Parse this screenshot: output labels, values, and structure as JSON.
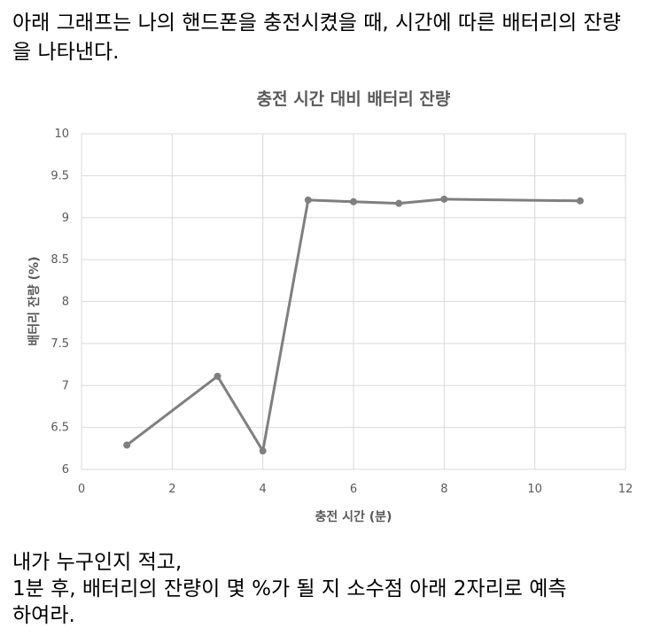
{
  "question": {
    "intro": "아래 그래프는 나의 핸드폰을 충전시켰을 때, 시간에 따른 배터리의 잔량을 나타낸다.",
    "lines": [
      "내가 누구인지 적고,",
      "1분 후, 배터리의 잔량이 몇 %가 될 지 소수점 아래 2자리로 예측",
      "하여라."
    ]
  },
  "colors": {
    "line": "#7f7f7f",
    "grid": "#d9d9d9",
    "text": "#595959"
  },
  "chart_data": {
    "type": "scatter",
    "title": "충전 시간 대비 배터리 잔량",
    "xlabel": "충전 시간 (분)",
    "ylabel": "배터리 잔량 (%)",
    "xlim": [
      0,
      12
    ],
    "ylim": [
      6,
      10
    ],
    "xticks": [
      "0",
      "2",
      "4",
      "6",
      "8",
      "10",
      "12"
    ],
    "yticks": [
      "6",
      "6.5",
      "7",
      "7.5",
      "8",
      "8.5",
      "9",
      "9.5",
      "10"
    ],
    "grid": true,
    "legend": "none",
    "series": [
      {
        "x": [
          1,
          3,
          4,
          5,
          6,
          7,
          8,
          11
        ],
        "y": [
          6.29,
          7.11,
          6.22,
          9.21,
          9.19,
          9.17,
          9.22,
          9.2
        ]
      }
    ]
  }
}
